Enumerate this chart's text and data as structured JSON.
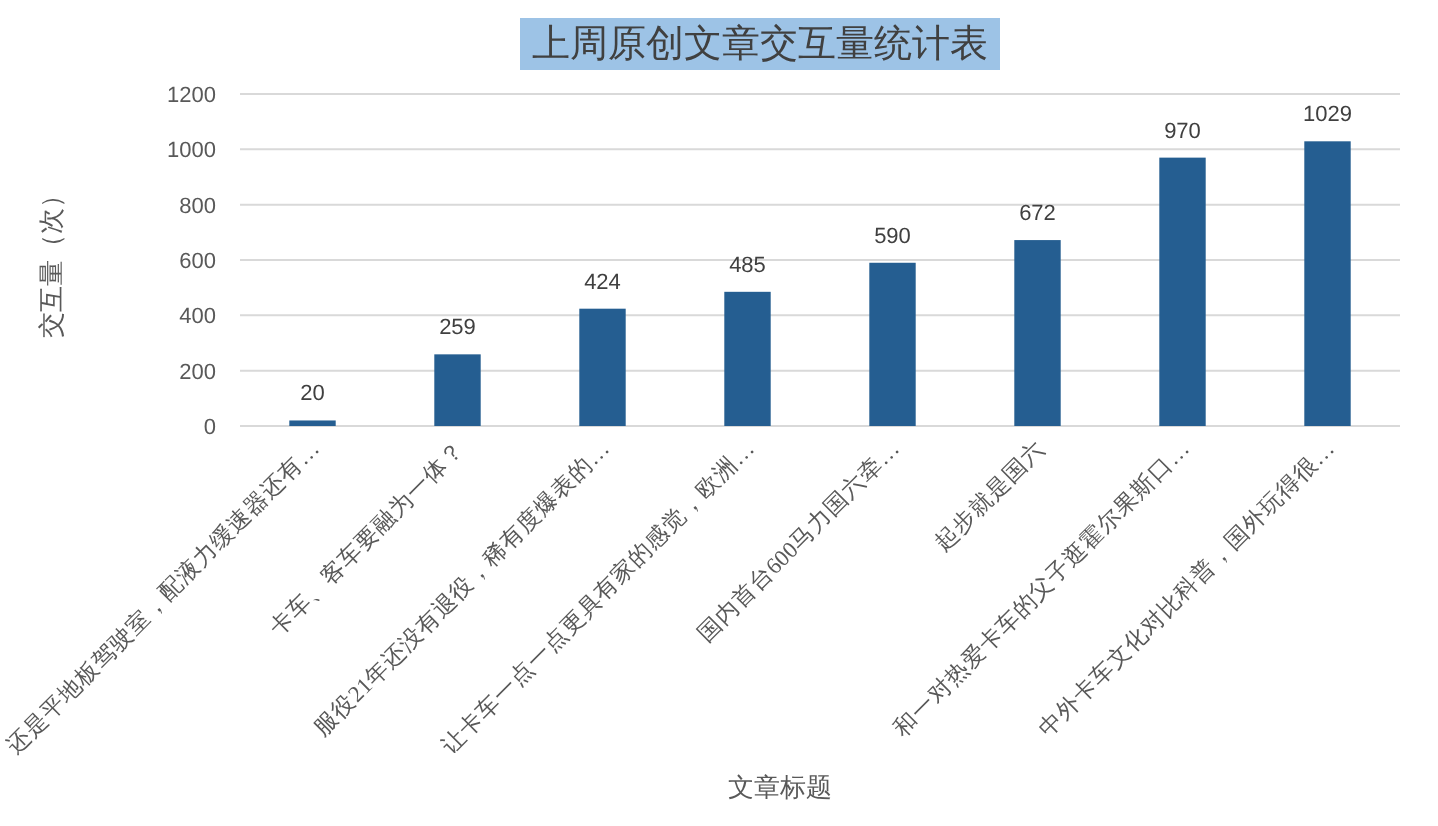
{
  "chart_data": {
    "type": "bar",
    "title": "上周原创文章交互量统计表",
    "xlabel": "文章标题",
    "ylabel": "交互量（次）",
    "categories": [
      "还是平地板驾驶室，配液力缓速器还有…",
      "卡车、客车要融为一体？",
      "服役21年还没有退役，稀有度爆表的…",
      "让卡车一点一点更具有家的感觉，欧洲…",
      "国内首台600马力国六牵…",
      "起步就是国六",
      "和一对热爱卡车的父子逛霍尔果斯口…",
      "中外卡车文化对比科普，国外玩得很…"
    ],
    "values": [
      20,
      259,
      424,
      485,
      590,
      672,
      970,
      1029
    ],
    "color": "#255e91",
    "ylim": [
      0,
      1200
    ],
    "yticks": [
      0,
      200,
      400,
      600,
      800,
      1000,
      1200
    ],
    "grid": "y",
    "data_labels": true
  }
}
